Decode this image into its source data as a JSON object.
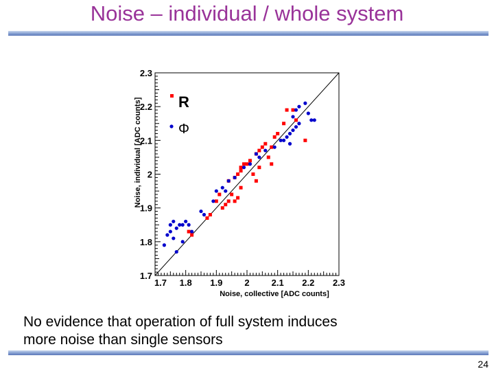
{
  "slide": {
    "title": "Noise – individual / whole system",
    "body_lines": [
      "No evidence that operation of full system induces",
      "more noise than single sensors"
    ],
    "page_number": "24"
  },
  "colors": {
    "title": "#993399",
    "series_R": "#ff0000",
    "series_Phi": "#0000cc",
    "rule": "#6a86c4"
  },
  "chart_data": {
    "type": "scatter",
    "xlabel": "Noise, collective [ADC counts]",
    "ylabel": "Noise, individual [ADC counts]",
    "xlim": [
      1.7,
      2.3
    ],
    "ylim": [
      1.7,
      2.3
    ],
    "xticks": [
      "1.7",
      "1.8",
      "1.9",
      "2",
      "2.1",
      "2.2",
      "2.3"
    ],
    "yticks": [
      "1.7",
      "1.8",
      "1.9",
      "2",
      "2.1",
      "2.2",
      "2.3"
    ],
    "diagonal": true,
    "legend_position": "top-left",
    "series": [
      {
        "name": "R",
        "marker": "square",
        "color": "#ff0000",
        "points": [
          [
            1.81,
            1.83
          ],
          [
            1.82,
            1.82
          ],
          [
            1.87,
            1.87
          ],
          [
            1.88,
            1.88
          ],
          [
            1.9,
            1.92
          ],
          [
            1.91,
            1.94
          ],
          [
            1.93,
            1.91
          ],
          [
            1.94,
            1.92
          ],
          [
            1.95,
            1.94
          ],
          [
            1.96,
            1.92
          ],
          [
            1.97,
            1.93
          ],
          [
            1.98,
            1.96
          ],
          [
            1.96,
            1.99
          ],
          [
            1.97,
            2.0
          ],
          [
            1.98,
            2.01
          ],
          [
            1.98,
            2.02
          ],
          [
            1.99,
            2.03
          ],
          [
            2.0,
            2.03
          ],
          [
            2.01,
            2.04
          ],
          [
            2.02,
            2.0
          ],
          [
            2.03,
            1.98
          ],
          [
            2.04,
            2.02
          ],
          [
            2.03,
            2.06
          ],
          [
            2.04,
            2.07
          ],
          [
            2.05,
            2.08
          ],
          [
            2.06,
            2.09
          ],
          [
            2.08,
            2.08
          ],
          [
            2.09,
            2.11
          ],
          [
            2.1,
            2.12
          ],
          [
            2.12,
            2.15
          ],
          [
            2.13,
            2.19
          ],
          [
            2.15,
            2.19
          ],
          [
            2.16,
            2.16
          ],
          [
            2.19,
            2.1
          ],
          [
            2.07,
            2.05
          ],
          [
            2.08,
            2.03
          ],
          [
            1.92,
            1.9
          ],
          [
            1.94,
            1.98
          ]
        ]
      },
      {
        "name": "Φ",
        "marker": "circle",
        "color": "#0000cc",
        "points": [
          [
            1.73,
            1.79
          ],
          [
            1.77,
            1.77
          ],
          [
            1.74,
            1.82
          ],
          [
            1.75,
            1.83
          ],
          [
            1.76,
            1.81
          ],
          [
            1.77,
            1.84
          ],
          [
            1.78,
            1.85
          ],
          [
            1.79,
            1.85
          ],
          [
            1.8,
            1.86
          ],
          [
            1.81,
            1.85
          ],
          [
            1.82,
            1.83
          ],
          [
            1.75,
            1.85
          ],
          [
            1.76,
            1.86
          ],
          [
            1.79,
            1.8
          ],
          [
            1.85,
            1.89
          ],
          [
            1.86,
            1.88
          ],
          [
            1.89,
            1.92
          ],
          [
            1.9,
            1.95
          ],
          [
            1.92,
            1.96
          ],
          [
            1.93,
            1.95
          ],
          [
            1.94,
            1.98
          ],
          [
            1.96,
            1.99
          ],
          [
            1.99,
            2.02
          ],
          [
            2.01,
            2.03
          ],
          [
            2.03,
            2.06
          ],
          [
            2.04,
            2.05
          ],
          [
            2.06,
            2.07
          ],
          [
            2.09,
            2.08
          ],
          [
            2.11,
            2.1
          ],
          [
            2.12,
            2.1
          ],
          [
            2.13,
            2.11
          ],
          [
            2.14,
            2.12
          ],
          [
            2.15,
            2.13
          ],
          [
            2.16,
            2.14
          ],
          [
            2.17,
            2.15
          ],
          [
            2.15,
            2.17
          ],
          [
            2.16,
            2.19
          ],
          [
            2.17,
            2.2
          ],
          [
            2.2,
            2.18
          ],
          [
            2.21,
            2.16
          ],
          [
            2.22,
            2.16
          ],
          [
            2.19,
            2.21
          ],
          [
            2.14,
            2.09
          ]
        ]
      }
    ]
  }
}
